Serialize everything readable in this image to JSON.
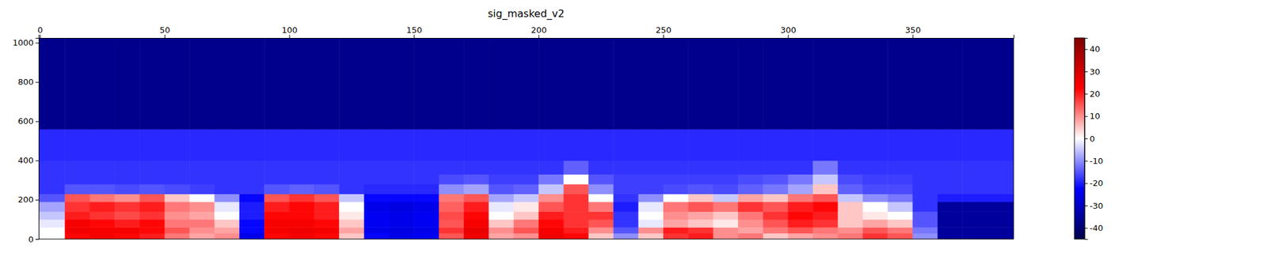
{
  "chart_data": {
    "type": "heatmap",
    "title": "sig_masked_v2",
    "xlim": [
      -0.5,
      390.5
    ],
    "ylim": [
      -0.5,
      1024.5
    ],
    "xticks": [
      0,
      50,
      100,
      150,
      200,
      250,
      300,
      350
    ],
    "yticks": [
      0,
      200,
      400,
      600,
      800,
      1000
    ],
    "x_edges": [
      -0.5,
      10,
      20,
      30,
      40,
      50,
      60,
      70,
      80,
      90,
      100,
      110,
      120,
      130,
      140,
      150,
      160,
      170,
      180,
      190,
      200,
      210,
      220,
      230,
      240,
      250,
      260,
      270,
      280,
      290,
      300,
      310,
      320,
      330,
      340,
      350,
      360,
      370,
      380,
      390.5
    ],
    "y_edges": [
      -0.5,
      30,
      60,
      100,
      140,
      190,
      230,
      280,
      330,
      400,
      560,
      1024.5
    ],
    "cells": [
      [
        0,
        22,
        24,
        22,
        20,
        12,
        8,
        10,
        -25,
        22,
        24,
        22,
        5,
        -22,
        -25,
        -24,
        15,
        25,
        8,
        10,
        25,
        22,
        5,
        -10,
        5,
        18,
        20,
        10,
        12,
        5,
        8,
        10,
        12,
        18,
        15,
        -10,
        -35,
        -35,
        -35
      ],
      [
        0,
        25,
        24,
        24,
        22,
        15,
        10,
        8,
        -22,
        24,
        25,
        24,
        8,
        -25,
        -26,
        -25,
        18,
        26,
        10,
        15,
        24,
        20,
        10,
        -15,
        10,
        20,
        18,
        10,
        8,
        12,
        15,
        12,
        10,
        15,
        12,
        -12,
        -35,
        -35,
        -35
      ],
      [
        -2,
        24,
        22,
        20,
        22,
        12,
        12,
        5,
        -22,
        24,
        24,
        22,
        5,
        -24,
        -25,
        -24,
        15,
        24,
        5,
        12,
        22,
        18,
        15,
        -18,
        -2,
        8,
        5,
        2,
        10,
        15,
        20,
        18,
        5,
        8,
        5,
        -15,
        -35,
        -35,
        -35
      ],
      [
        -5,
        20,
        18,
        16,
        18,
        10,
        8,
        0,
        -20,
        22,
        22,
        20,
        2,
        -24,
        -25,
        -24,
        16,
        22,
        0,
        5,
        20,
        18,
        18,
        -18,
        0,
        10,
        8,
        5,
        12,
        18,
        22,
        20,
        5,
        2,
        0,
        -15,
        -35,
        -35,
        -35
      ],
      [
        -8,
        18,
        20,
        18,
        20,
        12,
        10,
        -2,
        -20,
        20,
        22,
        20,
        0,
        -25,
        -26,
        -25,
        14,
        20,
        -2,
        2,
        15,
        18,
        12,
        -20,
        -2,
        12,
        15,
        12,
        18,
        15,
        20,
        22,
        5,
        0,
        -5,
        -18,
        -35,
        -35,
        -35
      ],
      [
        -15,
        15,
        12,
        10,
        15,
        5,
        0,
        -10,
        -22,
        15,
        18,
        15,
        -5,
        -22,
        -22,
        -22,
        12,
        15,
        -8,
        -5,
        10,
        18,
        0,
        -18,
        -10,
        0,
        5,
        -5,
        8,
        5,
        12,
        15,
        -5,
        -10,
        -12,
        -18,
        -20,
        -20,
        -20
      ],
      [
        -18,
        -15,
        -15,
        -16,
        -15,
        -16,
        -17,
        -18,
        -18,
        -15,
        -14,
        -15,
        -18,
        -19,
        -19,
        -19,
        -10,
        -8,
        -15,
        -14,
        -5,
        15,
        -10,
        -17,
        -17,
        -16,
        -15,
        -16,
        -14,
        -12,
        -8,
        5,
        -14,
        -16,
        -16,
        -18,
        -18,
        -18,
        -18
      ],
      [
        -18,
        -18,
        -18,
        -18,
        -18,
        -18,
        -18,
        -18,
        -18,
        -18,
        -18,
        -18,
        -18,
        -18,
        -18,
        -18,
        -16,
        -15,
        -17,
        -17,
        -12,
        0,
        -15,
        -17,
        -17,
        -17,
        -17,
        -17,
        -16,
        -15,
        -12,
        -5,
        -16,
        -17,
        -17,
        -18,
        -18,
        -18,
        -18
      ],
      [
        -18,
        -18,
        -18,
        -18,
        -18,
        -18,
        -18,
        -18,
        -18,
        -18,
        -18,
        -18,
        -18,
        -18,
        -18,
        -18,
        -18,
        -18,
        -18,
        -18,
        -18,
        -14,
        -18,
        -18,
        -18,
        -18,
        -18,
        -18,
        -18,
        -18,
        -18,
        -12,
        -18,
        -18,
        -18,
        -18,
        -18,
        -18,
        -18
      ],
      [
        -19,
        -19,
        -19,
        -19,
        -19,
        -19,
        -19,
        -19,
        -19,
        -19,
        -19,
        -19,
        -19,
        -19,
        -19,
        -19,
        -19,
        -19,
        -19,
        -19,
        -19,
        -19,
        -19,
        -19,
        -19,
        -19,
        -19,
        -19,
        -19,
        -19,
        -19,
        -19,
        -19,
        -19,
        -19,
        -19,
        -19,
        -19,
        -19
      ],
      [
        -37,
        -37,
        -37,
        -37,
        -37,
        -37,
        -37,
        -37,
        -37,
        -37,
        -37,
        -37,
        -37,
        -37,
        -37,
        -37,
        -37,
        -37,
        -37,
        -37,
        -37,
        -37,
        -37,
        -37,
        -37,
        -37,
        -37,
        -37,
        -37,
        -37,
        -37,
        -37,
        -37,
        -37,
        -37,
        -37,
        -37,
        -37,
        -37
      ]
    ],
    "colorbar": {
      "range": [
        -45,
        45
      ],
      "ticks": [
        -40,
        -30,
        -20,
        -10,
        0,
        10,
        20,
        30,
        40
      ]
    }
  }
}
